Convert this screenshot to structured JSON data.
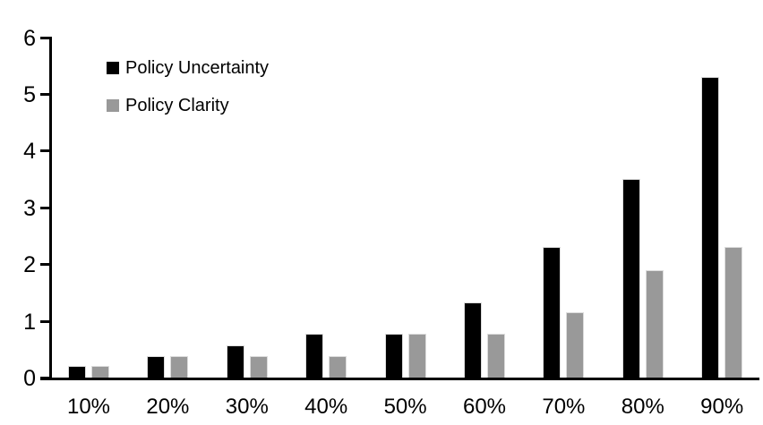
{
  "chart_data": {
    "type": "bar",
    "title": "",
    "categories": [
      "10%",
      "20%",
      "30%",
      "40%",
      "50%",
      "60%",
      "70%",
      "80%",
      "90%"
    ],
    "series": [
      {
        "name": "Policy Uncertainty",
        "color": "#000000",
        "values": [
          0.2,
          0.38,
          0.57,
          0.77,
          0.78,
          1.33,
          2.3,
          3.5,
          5.3
        ]
      },
      {
        "name": "Policy Clarity",
        "color": "#999999",
        "values": [
          0.2,
          0.38,
          0.38,
          0.38,
          0.77,
          0.77,
          1.15,
          1.9,
          2.3
        ]
      }
    ],
    "xlabel": "",
    "ylabel": "",
    "ylim": [
      0,
      6
    ],
    "ytick_interval": 1,
    "yticks": [
      "0",
      "1",
      "2",
      "3",
      "4",
      "5",
      "6"
    ],
    "grid": false,
    "legend_position": "top-left",
    "axis_color": "#000000",
    "background_color": "#ffffff"
  }
}
